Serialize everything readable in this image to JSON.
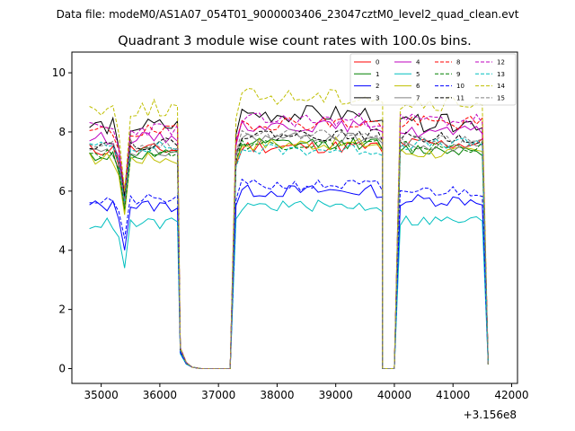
{
  "header": {
    "data_file": "Data file: modeM0/AS1A07_054T01_9000003406_23047cztM0_level2_quad_clean.evt"
  },
  "chart_data": {
    "type": "line",
    "title": "Quadrant 3 module wise count rates with 100.0s bins.",
    "xlabel": "",
    "ylabel": "",
    "x_offset_label": "+3.156e8",
    "xlim": [
      34500,
      42100
    ],
    "ylim": [
      -0.5,
      10.7
    ],
    "x_ticks": [
      35000,
      36000,
      37000,
      38000,
      39000,
      40000,
      41000,
      42000
    ],
    "x_tick_labels": [
      "35000",
      "36000",
      "37000",
      "38000",
      "39000",
      "40000",
      "41000",
      "42000"
    ],
    "y_ticks": [
      0,
      2,
      4,
      6,
      8,
      10
    ],
    "y_tick_labels": [
      "0",
      "2",
      "4",
      "6",
      "8",
      "10"
    ],
    "legend_position": "top-right",
    "segments": [
      {
        "start": 34800,
        "n": 16
      },
      {
        "start": 36350,
        "n": 3
      },
      {
        "start": 36700,
        "n": 6
      },
      {
        "start": 37300,
        "n": 26
      },
      {
        "start": 39800,
        "n": 3
      },
      {
        "start": 40100,
        "n": 16
      }
    ],
    "series": [
      {
        "name": "0",
        "color": "#ff0000",
        "dash": "solid",
        "seg_levels": [
          7.4,
          0.65,
          0,
          7.5,
          0,
          7.6
        ],
        "jitter": 0.22,
        "dip": 1.8,
        "seed": 11
      },
      {
        "name": "1",
        "color": "#008000",
        "dash": "solid",
        "seg_levels": [
          7.2,
          0.65,
          0,
          7.6,
          0,
          7.4
        ],
        "jitter": 0.2,
        "dip": 1.9,
        "seed": 12
      },
      {
        "name": "2",
        "color": "#0000ff",
        "dash": "solid",
        "seg_levels": [
          5.5,
          0.55,
          0,
          6.0,
          0,
          5.7
        ],
        "jitter": 0.22,
        "dip": 1.5,
        "seed": 13
      },
      {
        "name": "3",
        "color": "#000000",
        "dash": "solid",
        "seg_levels": [
          8.2,
          0.7,
          0,
          8.6,
          0,
          8.3
        ],
        "jitter": 0.3,
        "dip": 2.4,
        "seed": 14
      },
      {
        "name": "4",
        "color": "#bf00bf",
        "dash": "solid",
        "seg_levels": [
          7.8,
          0.7,
          0,
          8.2,
          0,
          8.0
        ],
        "jitter": 0.2,
        "dip": 2.2,
        "seed": 15
      },
      {
        "name": "5",
        "color": "#00bfbf",
        "dash": "solid",
        "seg_levels": [
          4.9,
          0.5,
          0,
          5.5,
          0,
          5.0
        ],
        "jitter": 0.2,
        "dip": 1.5,
        "seed": 16
      },
      {
        "name": "6",
        "color": "#bfbf00",
        "dash": "solid",
        "seg_levels": [
          7.1,
          0.65,
          0,
          7.6,
          0,
          7.3
        ],
        "jitter": 0.22,
        "dip": 1.9,
        "seed": 17
      },
      {
        "name": "7",
        "color": "#808080",
        "dash": "solid",
        "seg_levels": [
          7.3,
          0.65,
          0,
          7.8,
          0,
          7.5
        ],
        "jitter": 0.18,
        "dip": 1.8,
        "seed": 18
      },
      {
        "name": "8",
        "color": "#ff0000",
        "dash": "dashed",
        "seg_levels": [
          8.0,
          0.7,
          0,
          8.3,
          0,
          8.3
        ],
        "jitter": 0.25,
        "dip": 2.0,
        "seed": 19
      },
      {
        "name": "9",
        "color": "#008000",
        "dash": "dashed",
        "seg_levels": [
          7.3,
          0.65,
          0,
          7.6,
          0,
          7.5
        ],
        "jitter": 0.2,
        "dip": 1.9,
        "seed": 20
      },
      {
        "name": "10",
        "color": "#0000ff",
        "dash": "dashed",
        "seg_levels": [
          5.7,
          0.55,
          0,
          6.2,
          0,
          6.0
        ],
        "jitter": 0.2,
        "dip": 1.3,
        "seed": 21
      },
      {
        "name": "11",
        "color": "#000000",
        "dash": "dashed",
        "seg_levels": [
          7.6,
          0.65,
          0,
          7.9,
          0,
          7.8
        ],
        "jitter": 0.2,
        "dip": 2.0,
        "seed": 22
      },
      {
        "name": "12",
        "color": "#bf00bf",
        "dash": "dashed",
        "seg_levels": [
          8.1,
          0.7,
          0,
          8.4,
          0,
          8.4
        ],
        "jitter": 0.25,
        "dip": 2.1,
        "seed": 23
      },
      {
        "name": "13",
        "color": "#00bfbf",
        "dash": "dashed",
        "seg_levels": [
          7.5,
          0.65,
          0,
          7.4,
          0,
          7.6
        ],
        "jitter": 0.2,
        "dip": 1.9,
        "seed": 24
      },
      {
        "name": "14",
        "color": "#bfbf00",
        "dash": "dashed",
        "seg_levels": [
          8.8,
          0.7,
          0,
          9.2,
          0,
          8.9
        ],
        "jitter": 0.3,
        "dip": 2.8,
        "seed": 25
      },
      {
        "name": "15",
        "color": "#808080",
        "dash": "dashed",
        "seg_levels": [
          7.6,
          0.65,
          0,
          7.9,
          0,
          7.7
        ],
        "jitter": 0.2,
        "dip": 2.0,
        "seed": 26
      }
    ]
  }
}
